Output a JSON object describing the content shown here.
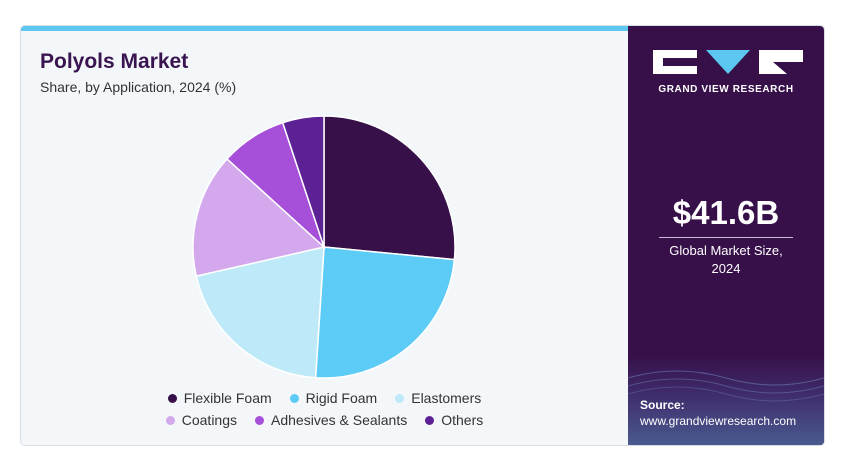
{
  "header": {
    "title": "Polyols Market",
    "subtitle": "Share, by Application, 2024 (%)"
  },
  "chart_data": {
    "type": "pie",
    "title": "Polyols Market",
    "subtitle": "Share, by Application, 2024 (%)",
    "categories": [
      "Flexible Foam",
      "Rigid Foam",
      "Elastomers",
      "Coatings",
      "Adhesives & Sealants",
      "Others"
    ],
    "values": [
      26,
      24,
      20,
      15,
      8,
      5
    ],
    "colors": [
      "#37104a",
      "#5ccbf5",
      "#bde9f9",
      "#d3a8ec",
      "#a64fd9",
      "#5d2196"
    ],
    "legend_position": "bottom"
  },
  "legend": {
    "items": [
      {
        "label": "Flexible Foam",
        "color": "#37104a"
      },
      {
        "label": "Rigid Foam",
        "color": "#5ccbf5"
      },
      {
        "label": "Elastomers",
        "color": "#bde9f9"
      },
      {
        "label": "Coatings",
        "color": "#d3a8ec"
      },
      {
        "label": "Adhesives & Sealants",
        "color": "#a64fd9"
      },
      {
        "label": "Others",
        "color": "#5d2196"
      }
    ]
  },
  "sidebar": {
    "logo_text": "GRAND VIEW RESEARCH",
    "market_value": "$41.6B",
    "market_label_line1": "Global Market Size,",
    "market_label_line2": "2024",
    "source_label": "Source:",
    "source_url": "www.grandviewresearch.com"
  },
  "colors": {
    "brand_dark": "#37104a",
    "accent": "#5cc8f1"
  }
}
